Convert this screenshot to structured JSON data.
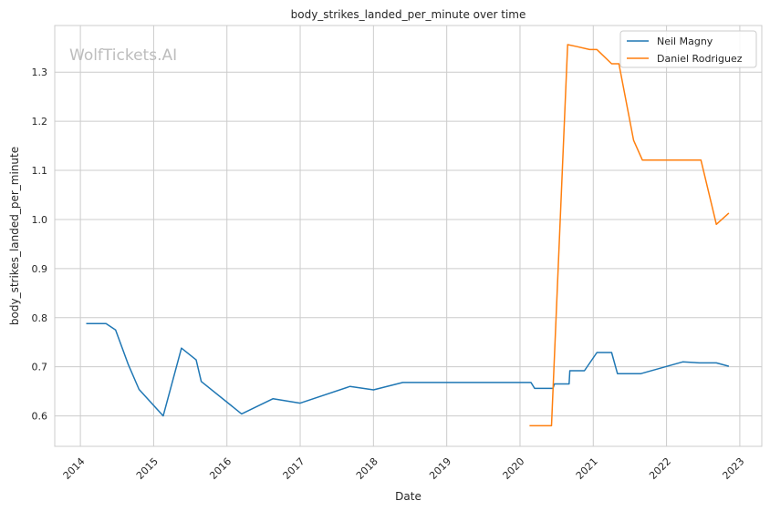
{
  "chart_data": {
    "type": "line",
    "title": "body_strikes_landed_per_minute over time",
    "xlabel": "Date",
    "ylabel": "body_strikes_landed_per_minute",
    "watermark": "WolfTickets.AI",
    "xlim": [
      2013.65,
      2023.3
    ],
    "ylim": [
      0.538,
      1.395
    ],
    "x_ticks": [
      2014,
      2015,
      2016,
      2017,
      2018,
      2019,
      2020,
      2021,
      2022,
      2023
    ],
    "x_tick_labels": [
      "2014",
      "2015",
      "2016",
      "2017",
      "2018",
      "2019",
      "2020",
      "2021",
      "2022",
      "2023"
    ],
    "y_ticks": [
      0.6,
      0.7,
      0.8,
      0.9,
      1.0,
      1.1,
      1.2,
      1.3
    ],
    "y_tick_labels": [
      "0.6",
      "0.7",
      "0.8",
      "0.9",
      "1.0",
      "1.1",
      "1.2",
      "1.3"
    ],
    "grid": true,
    "legend_position": "top-right",
    "series": [
      {
        "name": "Neil Magny",
        "color": "#1f77b4",
        "x": [
          2014.08,
          2014.35,
          2014.48,
          2014.65,
          2014.8,
          2015.13,
          2015.38,
          2015.58,
          2015.65,
          2016.2,
          2016.63,
          2017.0,
          2017.68,
          2018.0,
          2018.4,
          2020.15,
          2020.2,
          2020.45,
          2020.47,
          2020.67,
          2020.68,
          2020.88,
          2021.05,
          2021.25,
          2021.33,
          2021.65,
          2022.22,
          2022.45,
          2022.68,
          2022.85
        ],
        "y": [
          0.788,
          0.788,
          0.775,
          0.706,
          0.654,
          0.6,
          0.738,
          0.714,
          0.67,
          0.604,
          0.635,
          0.626,
          0.66,
          0.653,
          0.668,
          0.668,
          0.656,
          0.656,
          0.665,
          0.665,
          0.692,
          0.692,
          0.729,
          0.729,
          0.686,
          0.686,
          0.71,
          0.708,
          0.708,
          0.701
        ]
      },
      {
        "name": "Daniel Rodriguez",
        "color": "#ff7f0e",
        "x": [
          2020.13,
          2020.43,
          2020.65,
          2020.78,
          2020.95,
          2021.05,
          2021.25,
          2021.35,
          2021.55,
          2021.67,
          2022.47,
          2022.68,
          2022.85
        ],
        "y": [
          0.58,
          0.58,
          1.356,
          1.352,
          1.346,
          1.346,
          1.317,
          1.317,
          1.161,
          1.121,
          1.121,
          0.99,
          1.013
        ]
      }
    ]
  }
}
